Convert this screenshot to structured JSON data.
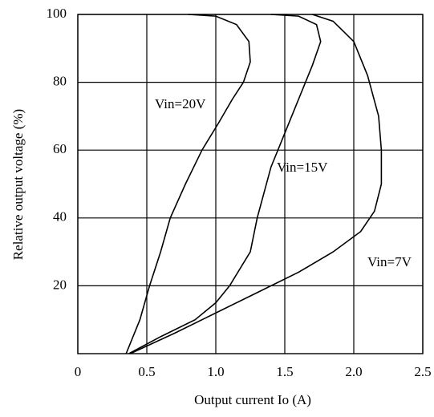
{
  "chart_data": {
    "type": "line",
    "x_label": "Output current  Io (A)",
    "y_label": "Relative output voltage  (%)",
    "xlim": [
      0,
      2.5
    ],
    "ylim": [
      0,
      100
    ],
    "xticks": [
      0,
      0.5,
      {
        "value": 1,
        "label": "1.0"
      },
      1.5,
      {
        "value": 2,
        "label": "2.0"
      },
      2.5
    ],
    "yticks": [
      20,
      40,
      60,
      80,
      100
    ],
    "grid": true,
    "series": [
      {
        "name": "Vin=20V",
        "color": "#000000",
        "x": [
          0.35,
          0.45,
          0.52,
          0.6,
          0.67,
          0.78,
          0.9,
          1.02,
          1.12,
          1.2,
          1.25,
          1.24,
          1.15,
          1.0,
          0.8
        ],
        "values": [
          0,
          10,
          20,
          30,
          40,
          50,
          60,
          68,
          75,
          80,
          86,
          92,
          97,
          99.5,
          100
        ]
      },
      {
        "name": "Vin=15V",
        "color": "#000000",
        "x": [
          0.37,
          0.6,
          0.85,
          1.0,
          1.1,
          1.25,
          1.3,
          1.4,
          1.5,
          1.6,
          1.7,
          1.76,
          1.73,
          1.6,
          1.4
        ],
        "values": [
          0,
          5,
          10,
          15,
          20,
          30,
          40,
          55,
          65,
          75,
          85,
          92,
          97,
          99.5,
          100
        ]
      },
      {
        "name": "Vin=7V",
        "color": "#000000",
        "x": [
          0.38,
          0.7,
          1.0,
          1.3,
          1.6,
          1.85,
          2.05,
          2.15,
          2.2,
          2.2,
          2.18,
          2.1,
          2.0,
          1.85,
          1.7
        ],
        "values": [
          0,
          6,
          12,
          18,
          24,
          30,
          36,
          42,
          50,
          60,
          70,
          82,
          92,
          98,
          100
        ]
      }
    ]
  }
}
